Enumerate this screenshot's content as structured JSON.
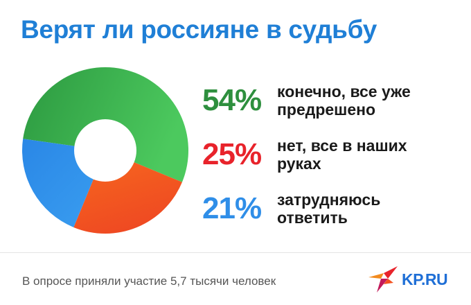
{
  "title": "Верят ли россияне в судьбу",
  "chart_data": {
    "type": "pie",
    "donut": true,
    "slices": [
      {
        "label": "конечно, все уже предрешено",
        "value": 54,
        "pct_label": "54%",
        "color": "#3aa848"
      },
      {
        "label": "нет, все в наших руках",
        "value": 25,
        "pct_label": "25%",
        "color": "#f4511e"
      },
      {
        "label": "затрудняюсь ответить",
        "value": 21,
        "pct_label": "21%",
        "color": "#2f8ee8"
      }
    ],
    "legend_position": "right"
  },
  "legend_colors": [
    "#2e8f3e",
    "#e8232b",
    "#2f8ee8"
  ],
  "footer": "В опросе приняли участие 5,7 тысячи человек",
  "logo": {
    "text": "KP.RU",
    "icon": "kp-bird-logo"
  }
}
